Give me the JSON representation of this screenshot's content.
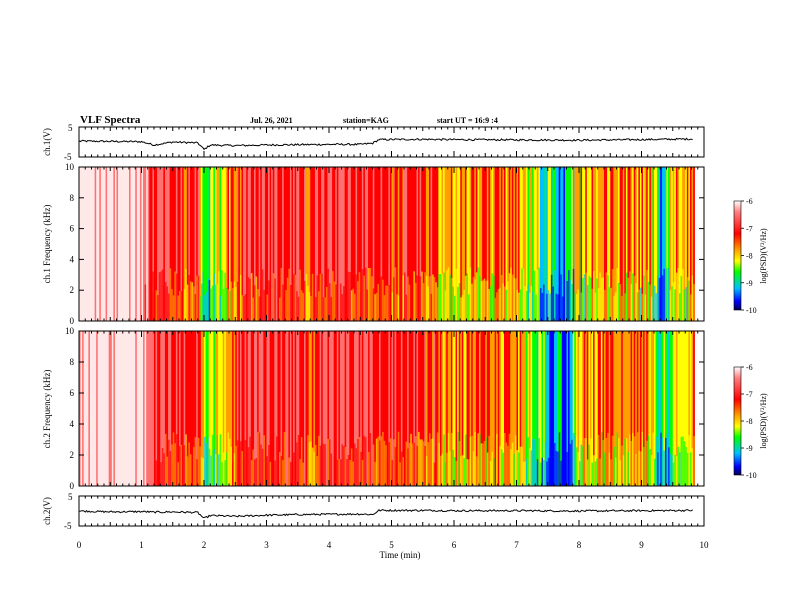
{
  "header": {
    "title": "VLF Spectra",
    "date": "Jul. 26, 2021",
    "station": "station=KAG",
    "start": "start UT = 16:9 :4"
  },
  "chart_data": [
    {
      "type": "line",
      "panel": "ch1-waveform",
      "ylabel": "ch.1(V)",
      "ylim": [
        -5,
        5
      ],
      "yticks": [
        "5",
        "-5"
      ],
      "xlim": [
        0,
        10
      ],
      "x": [
        0,
        0.5,
        1.0,
        1.2,
        1.5,
        1.9,
        2.0,
        2.1,
        2.5,
        3.0,
        3.5,
        4.0,
        4.5,
        4.7,
        4.8,
        5.5,
        6.0,
        7.0,
        8.0,
        9.0,
        9.8
      ],
      "y": [
        0.3,
        0.2,
        0.1,
        -1.0,
        0.0,
        -0.3,
        -2.5,
        -1.0,
        -1.2,
        -1.0,
        -0.9,
        -0.8,
        -0.8,
        -0.4,
        0.8,
        0.9,
        0.8,
        0.7,
        0.6,
        0.8,
        1.0
      ]
    },
    {
      "type": "heatmap",
      "panel": "ch1-spectrogram",
      "ylabel": "ch.1 Frequency (kHz)",
      "ylim": [
        0,
        10
      ],
      "yticks": [
        0,
        2,
        4,
        6,
        8,
        10
      ],
      "xlim": [
        0,
        9.85
      ],
      "zlabel": "log(PSD)(V²/Hz)",
      "zlim": [
        -10,
        -6
      ],
      "zticks": [
        "-6",
        "-7",
        "-8",
        "-9",
        "-10"
      ],
      "intensity": [
        {
          "t": 0.0,
          "v": 0.05
        },
        {
          "t": 1.0,
          "v": 0.05
        },
        {
          "t": 1.2,
          "v": 0.32
        },
        {
          "t": 1.9,
          "v": 0.35
        },
        {
          "t": 2.0,
          "v": 0.7
        },
        {
          "t": 2.6,
          "v": 0.35
        },
        {
          "t": 3.0,
          "v": 0.3
        },
        {
          "t": 3.6,
          "v": 0.3
        },
        {
          "t": 3.7,
          "v": 0.5
        },
        {
          "t": 3.8,
          "v": 0.32
        },
        {
          "t": 4.7,
          "v": 0.32
        },
        {
          "t": 4.8,
          "v": 0.38
        },
        {
          "t": 5.7,
          "v": 0.4
        },
        {
          "t": 5.8,
          "v": 0.55
        },
        {
          "t": 6.5,
          "v": 0.45
        },
        {
          "t": 7.0,
          "v": 0.5
        },
        {
          "t": 7.75,
          "v": 0.85
        },
        {
          "t": 8.0,
          "v": 0.55
        },
        {
          "t": 8.5,
          "v": 0.45
        },
        {
          "t": 9.15,
          "v": 0.55
        },
        {
          "t": 9.3,
          "v": 0.8
        },
        {
          "t": 9.5,
          "v": 0.55
        },
        {
          "t": 9.85,
          "v": 0.5
        }
      ]
    },
    {
      "type": "heatmap",
      "panel": "ch2-spectrogram",
      "ylabel": "ch.2 Frequency (kHz)",
      "ylim": [
        0,
        10
      ],
      "yticks": [
        0,
        2,
        4,
        6,
        8,
        10
      ],
      "xlim": [
        0,
        9.85
      ],
      "zlabel": "log(PSD)(V²/Hz)",
      "zlim": [
        -10,
        -6
      ],
      "zticks": [
        "-6",
        "-7",
        "-8",
        "-9",
        "-10"
      ],
      "intensity": [
        {
          "t": 0.0,
          "v": 0.05
        },
        {
          "t": 1.0,
          "v": 0.05
        },
        {
          "t": 1.2,
          "v": 0.3
        },
        {
          "t": 1.9,
          "v": 0.33
        },
        {
          "t": 2.0,
          "v": 0.68
        },
        {
          "t": 2.6,
          "v": 0.33
        },
        {
          "t": 3.0,
          "v": 0.28
        },
        {
          "t": 3.6,
          "v": 0.28
        },
        {
          "t": 3.7,
          "v": 0.48
        },
        {
          "t": 3.8,
          "v": 0.3
        },
        {
          "t": 4.7,
          "v": 0.3
        },
        {
          "t": 4.8,
          "v": 0.36
        },
        {
          "t": 5.7,
          "v": 0.38
        },
        {
          "t": 5.8,
          "v": 0.53
        },
        {
          "t": 6.5,
          "v": 0.43
        },
        {
          "t": 7.0,
          "v": 0.48
        },
        {
          "t": 7.75,
          "v": 0.88
        },
        {
          "t": 8.0,
          "v": 0.53
        },
        {
          "t": 8.5,
          "v": 0.43
        },
        {
          "t": 9.15,
          "v": 0.53
        },
        {
          "t": 9.3,
          "v": 0.82
        },
        {
          "t": 9.5,
          "v": 0.53
        },
        {
          "t": 9.85,
          "v": 0.48
        }
      ]
    },
    {
      "type": "line",
      "panel": "ch2-waveform",
      "ylabel": "ch.2(V)",
      "ylim": [
        -5,
        5
      ],
      "yticks": [
        "5",
        "-5"
      ],
      "xlim": [
        0,
        10
      ],
      "x": [
        0,
        0.5,
        1.0,
        1.2,
        1.5,
        1.9,
        2.0,
        2.1,
        2.5,
        3.0,
        3.5,
        4.0,
        4.5,
        4.7,
        4.8,
        5.5,
        6.0,
        7.0,
        8.0,
        9.0,
        9.8
      ],
      "y": [
        0.0,
        -0.3,
        -0.2,
        -0.4,
        -0.3,
        -0.5,
        -2.5,
        -1.5,
        -1.8,
        -1.4,
        -1.2,
        -1.1,
        -1.0,
        -1.2,
        0.2,
        0.2,
        0.1,
        0.1,
        0.0,
        0.1,
        0.2
      ]
    }
  ],
  "xaxis": {
    "label": "Time (min)",
    "ticks": [
      "0",
      "1",
      "2",
      "3",
      "4",
      "5",
      "6",
      "7",
      "8",
      "9",
      "10"
    ]
  },
  "colors": {
    "palette": [
      "#ffffff",
      "#ff3030",
      "#ff0000",
      "#ffa000",
      "#ffff00",
      "#00ff00",
      "#00c0ff",
      "#0000ff",
      "#000080"
    ]
  }
}
